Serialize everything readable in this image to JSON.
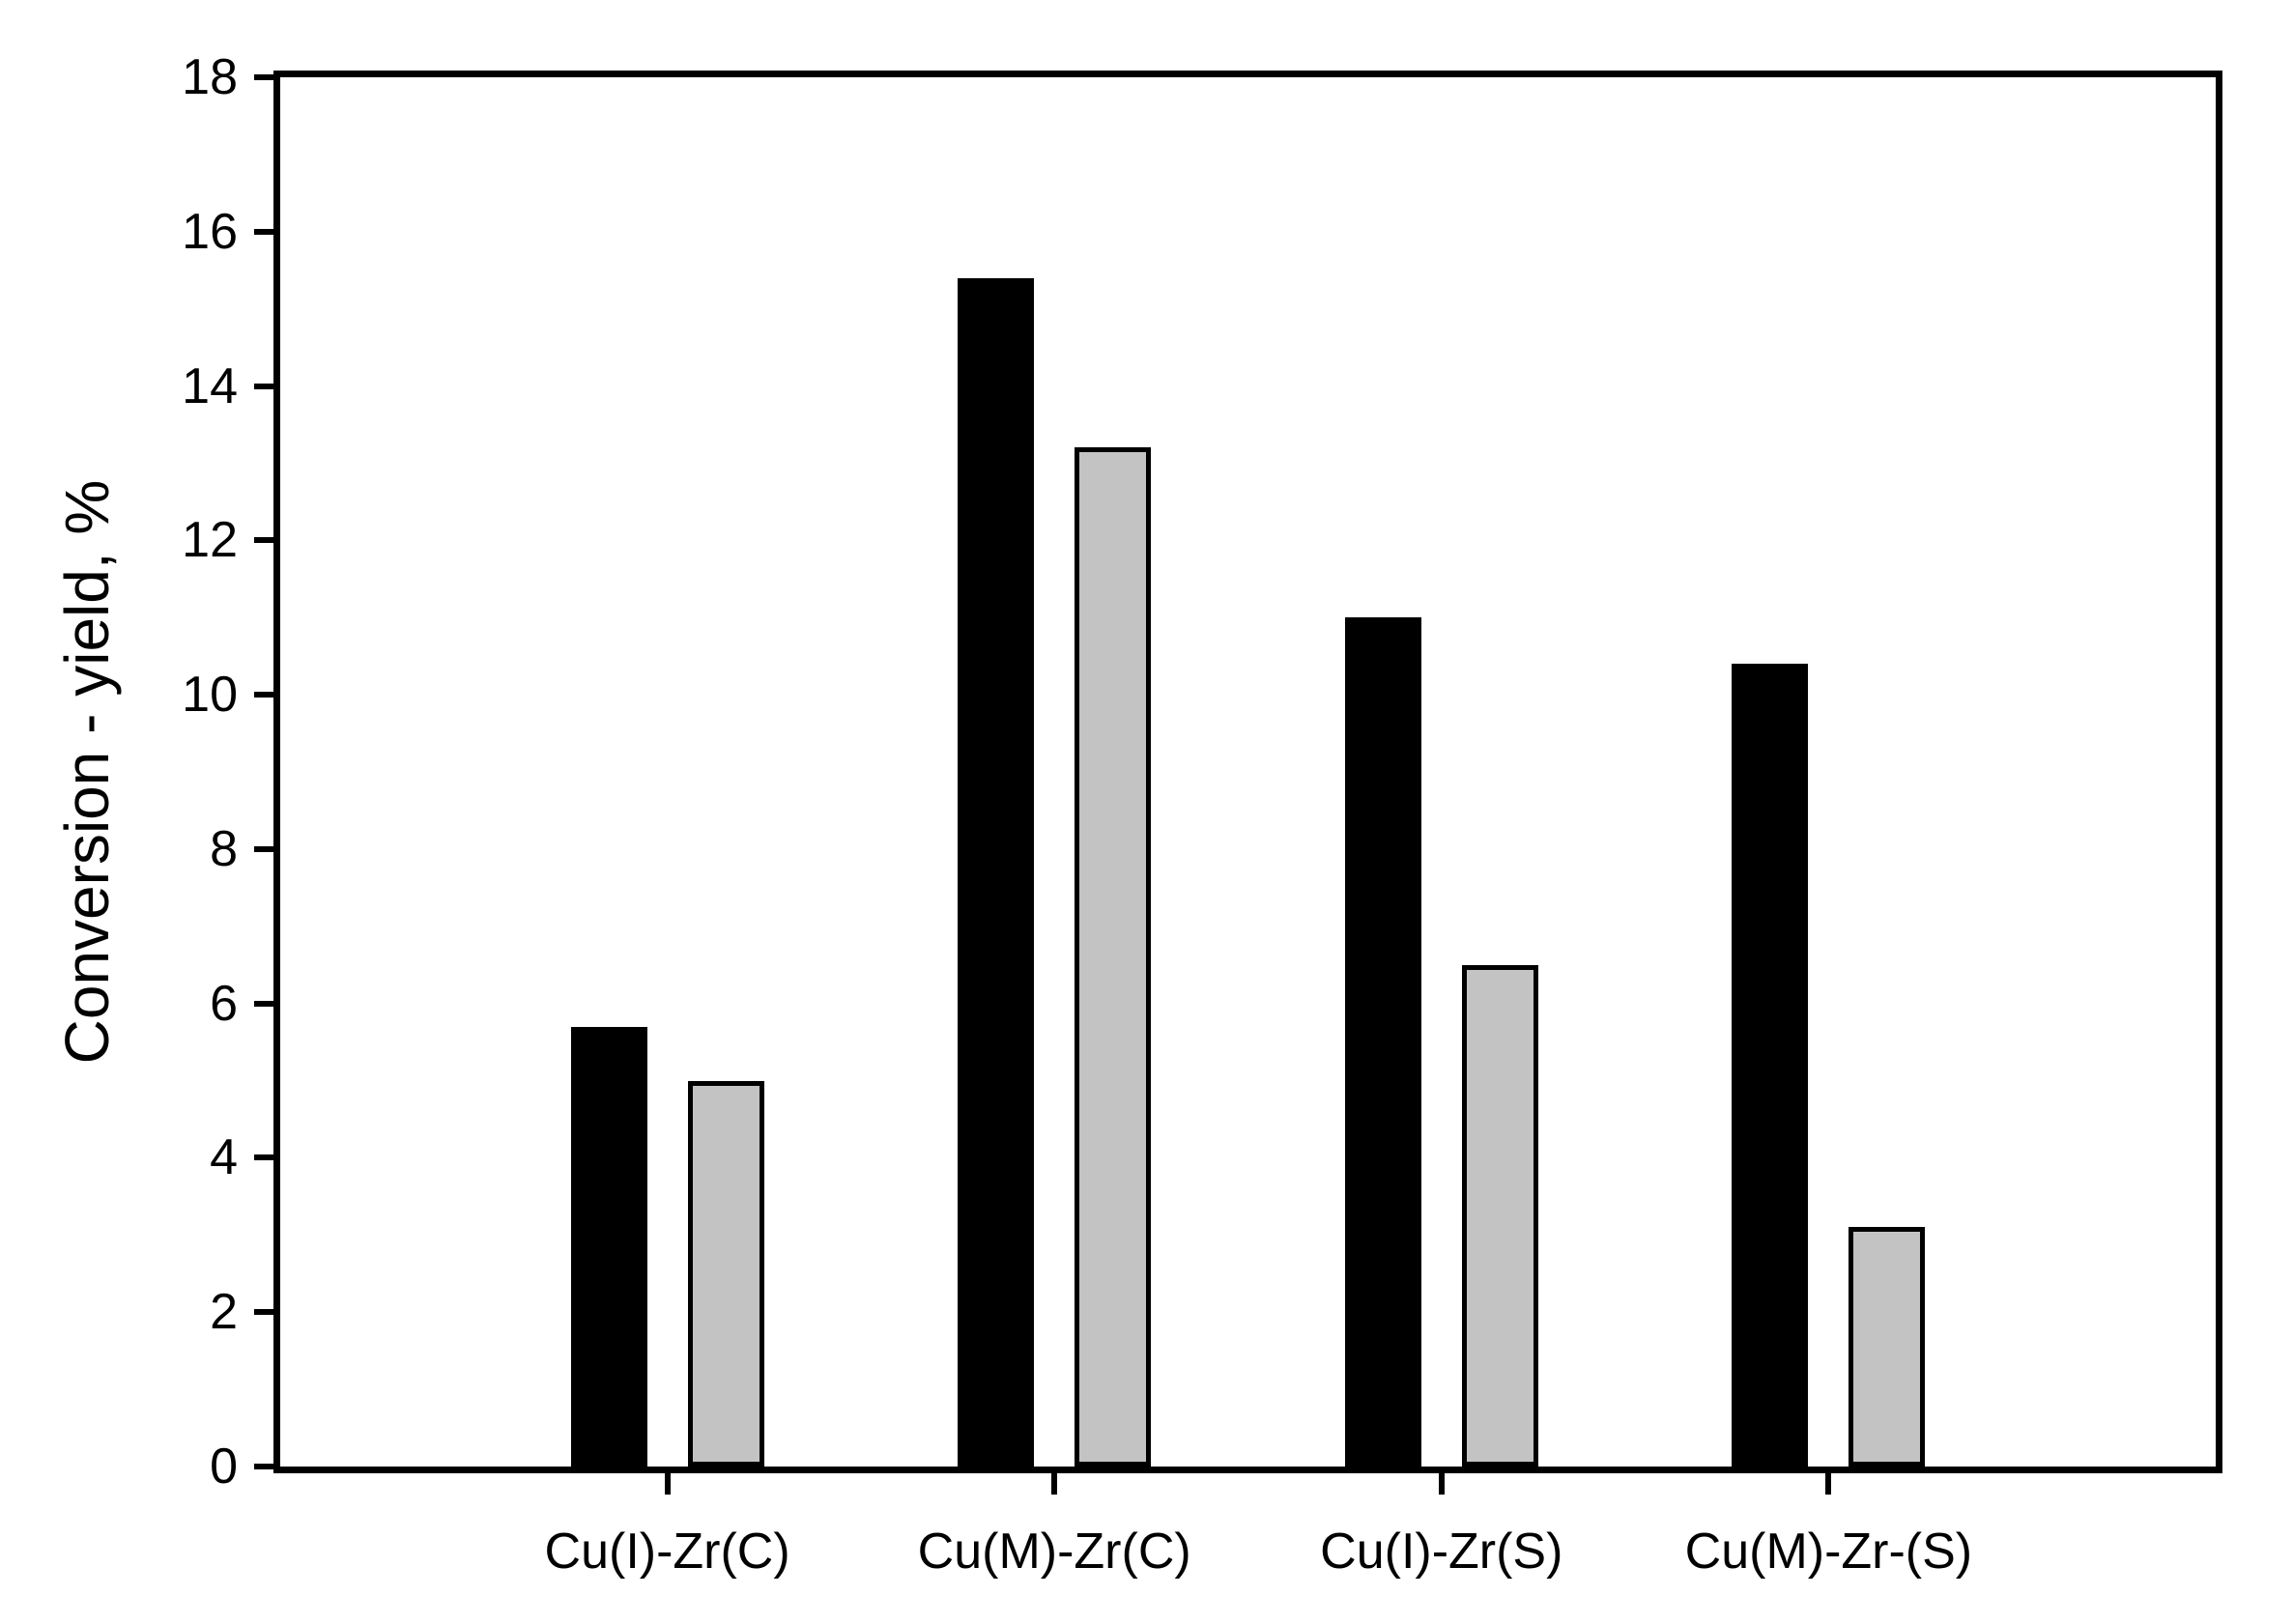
{
  "chart_data": {
    "type": "bar",
    "title": "",
    "ylabel": "Conversion - yield, %",
    "xlabel": "",
    "categories": [
      "Cu(I)-Zr(C)",
      "Cu(M)-Zr(C)",
      "Cu(I)-Zr(S)",
      "Cu(M)-Zr-(S)"
    ],
    "series": [
      {
        "name": "black",
        "fill": "#000000",
        "outline": "#000000",
        "values": [
          5.7,
          15.4,
          11.0,
          10.4
        ]
      },
      {
        "name": "gray",
        "fill": "#c3c3c3",
        "outline": "#000000",
        "values": [
          5.0,
          13.2,
          6.5,
          3.1
        ]
      }
    ],
    "ylim": [
      0,
      18
    ],
    "yticks": [
      0,
      2,
      4,
      6,
      8,
      10,
      12,
      14,
      16,
      18
    ],
    "ytick_step": 2,
    "grid": false,
    "legend": "none",
    "frame": "full",
    "axis_color": "#000000",
    "background_color": "#ffffff"
  }
}
